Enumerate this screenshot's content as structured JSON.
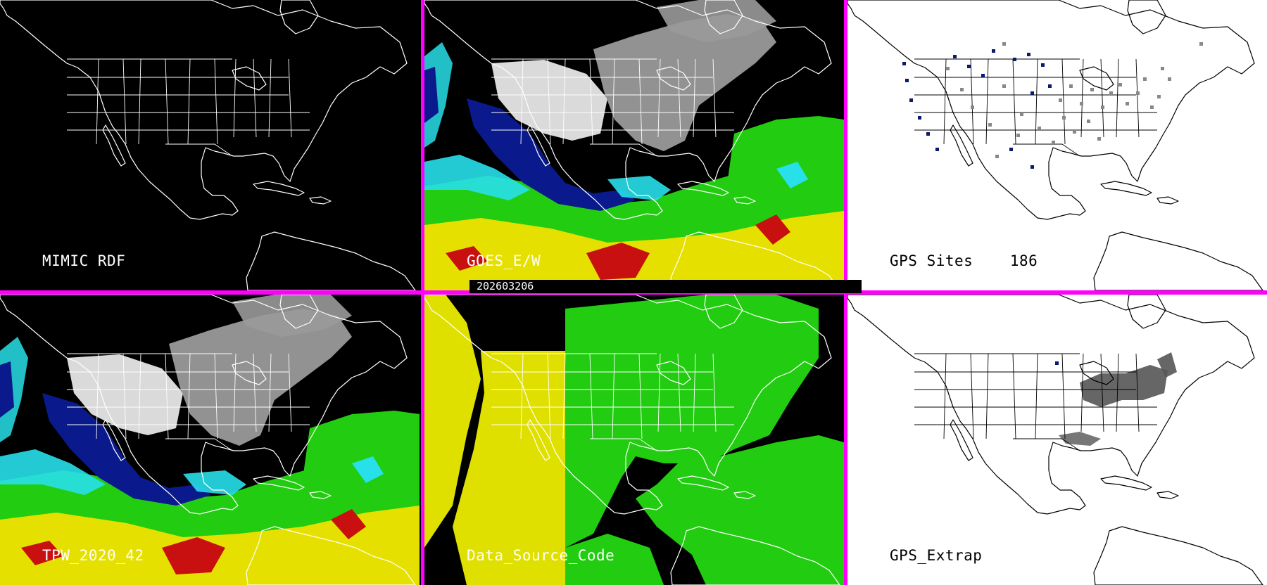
{
  "panels": [
    {
      "label": "MIMIC RDF",
      "theme": "dark",
      "field": "none"
    },
    {
      "label": "GOES_E/W",
      "theme": "dark",
      "field": "tpw"
    },
    {
      "label": "GPS Sites    186",
      "theme": "light",
      "field": "sites"
    },
    {
      "label": "TPW_2020_42",
      "theme": "dark",
      "field": "tpw"
    },
    {
      "label": "Data_Source_Code",
      "theme": "dark",
      "field": "source"
    },
    {
      "label": "GPS_Extrap",
      "theme": "light",
      "field": "extrap"
    }
  ],
  "timestamp": "202603206",
  "colors": {
    "divider": "#ff00ff",
    "ocean_dark": "#000000",
    "land_light": "#ffffff",
    "coast_dark": "#ffffff",
    "coast_light": "#000000",
    "tpw_low_gray": "#9a9a9a",
    "tpw_dry_white": "#e6e6e6",
    "tpw_navy": "#0a1a8c",
    "tpw_cyan": "#28e0ea",
    "tpw_green": "#22cc10",
    "tpw_yellow": "#e6e000",
    "tpw_red": "#c81010",
    "source_yellow": "#e0e000",
    "source_green": "#22cc10",
    "gps_site_navy": "#0a1a6c",
    "gps_site_gray": "#888888",
    "extrap_gray": "#555555"
  }
}
